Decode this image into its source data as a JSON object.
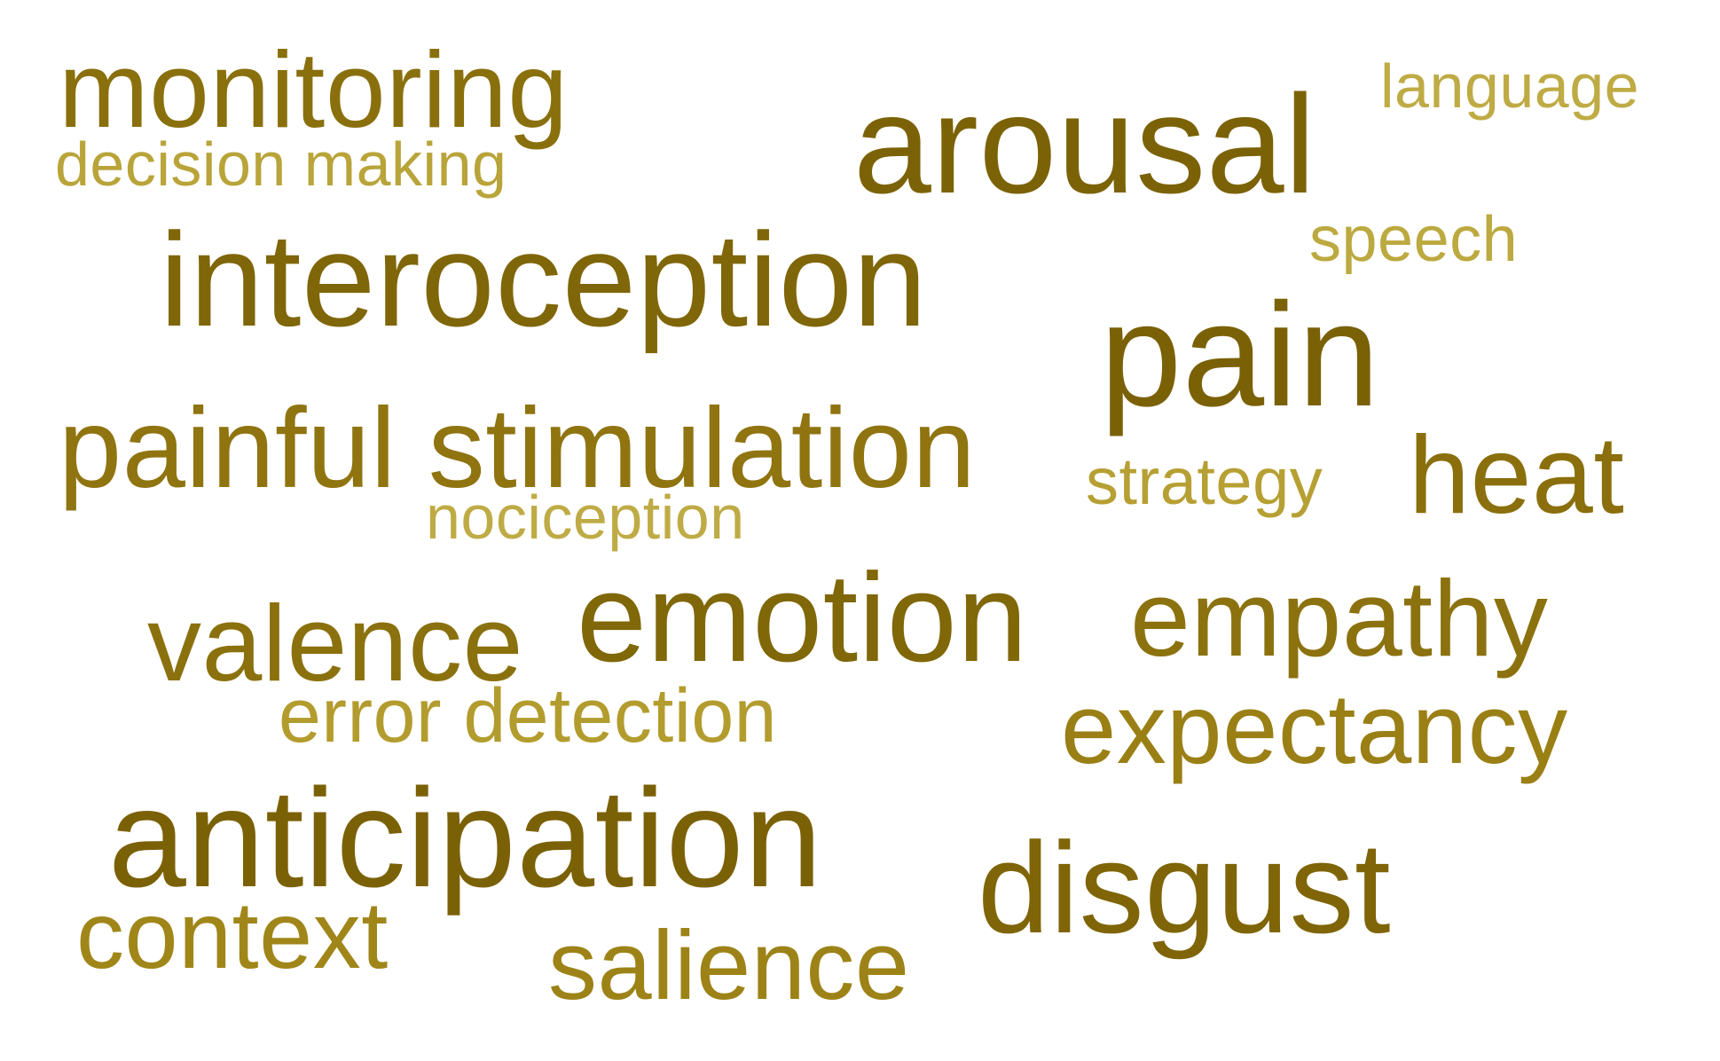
{
  "colors": {
    "background": "#ffffff",
    "dark": "#7d6409",
    "mid": "#93780f",
    "light": "#b7a22f"
  },
  "words": {
    "monitoring": {
      "text": "monitoring",
      "color": "#8a700d"
    },
    "decision_making": {
      "text": "decision making",
      "color": "#b9a43a"
    },
    "arousal": {
      "text": "arousal",
      "color": "#7c6207"
    },
    "language": {
      "text": "language",
      "color": "#bfab45"
    },
    "speech": {
      "text": "speech",
      "color": "#bca93f"
    },
    "interoception": {
      "text": "interoception",
      "color": "#7f6608"
    },
    "pain": {
      "text": "pain",
      "color": "#7b6106"
    },
    "painful_stimulation": {
      "text": "painful stimulation",
      "color": "#8f7410"
    },
    "strategy": {
      "text": "strategy",
      "color": "#b6a033"
    },
    "heat": {
      "text": "heat",
      "color": "#8a6f0c"
    },
    "nociception": {
      "text": "nociception",
      "color": "#bfab45"
    },
    "valence": {
      "text": "valence",
      "color": "#8b710e"
    },
    "emotion": {
      "text": "emotion",
      "color": "#806708"
    },
    "empathy": {
      "text": "empathy",
      "color": "#8c720f"
    },
    "error_detection": {
      "text": "error detection",
      "color": "#b39c2e"
    },
    "expectancy": {
      "text": "expectancy",
      "color": "#9a7f15"
    },
    "anticipation": {
      "text": "anticipation",
      "color": "#7b6106"
    },
    "disgust": {
      "text": "disgust",
      "color": "#7f6507"
    },
    "context": {
      "text": "context",
      "color": "#a08619"
    },
    "salience": {
      "text": "salience",
      "color": "#9d8317"
    }
  }
}
